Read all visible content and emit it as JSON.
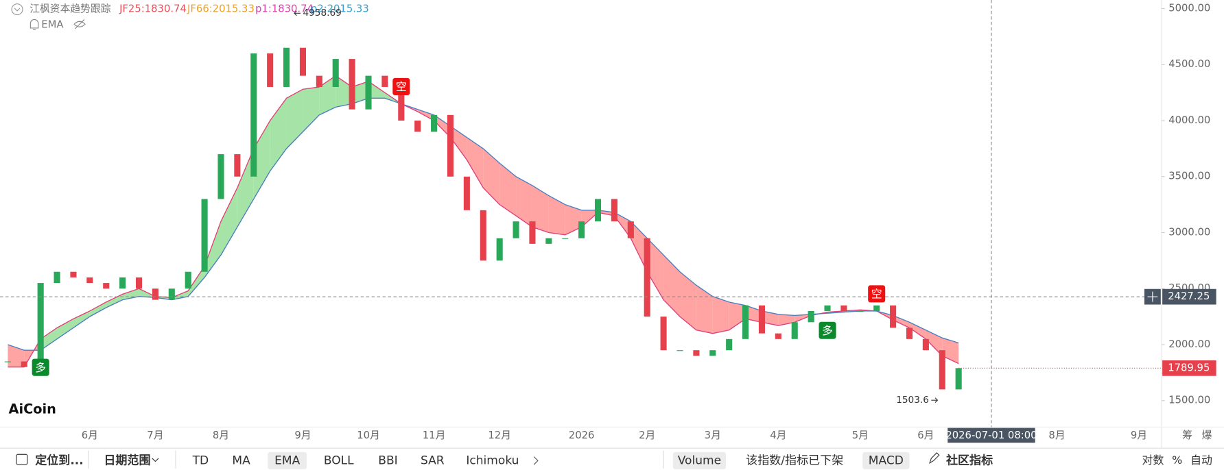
{
  "header": {
    "title": "江枫资本趋势跟踪",
    "plots": [
      {
        "name": "p1",
        "value": 1830.74
      },
      {
        "name": "p2",
        "value": 2015.33
      }
    ],
    "overlay": "EMA"
  },
  "logo": "AiCoin",
  "axis_extras": [
    "筹",
    "爆"
  ],
  "toolbar": {
    "locate": "定位到...",
    "date_range": "日期范围",
    "main_indicators": [
      {
        "label": "TD"
      },
      {
        "label": "MA"
      },
      {
        "label": "EMA",
        "active": true
      },
      {
        "label": "BOLL"
      },
      {
        "label": "BBI"
      },
      {
        "label": "SAR"
      },
      {
        "label": "Ichimoku"
      }
    ],
    "sub_indicators": [
      {
        "label": "Volume",
        "active": true
      },
      {
        "label": "该指数/指标已下架"
      },
      {
        "label": "MACD",
        "active": true
      }
    ],
    "community": "社区指标",
    "scale_options": [
      "对数",
      "%",
      "自动"
    ]
  },
  "chart_data": {
    "type": "candlestick",
    "categories": [
      null,
      null,
      null,
      null,
      null,
      "6月",
      null,
      null,
      null,
      "7月",
      null,
      null,
      null,
      "8月",
      null,
      null,
      null,
      null,
      "9月",
      null,
      null,
      null,
      "10月",
      null,
      null,
      null,
      "11月",
      null,
      null,
      null,
      "12月",
      null,
      null,
      null,
      null,
      "2026",
      null,
      null,
      null,
      "2月",
      null,
      null,
      null,
      "3月",
      null,
      null,
      null,
      "4月",
      null,
      null,
      null,
      null,
      "5月",
      null,
      null,
      null,
      "6月",
      null,
      null,
      null,
      "2026-07-01 08:00",
      null,
      null,
      null,
      "8月",
      null,
      null,
      null,
      null,
      "9月"
    ],
    "values": [
      1850,
      1800,
      2550,
      2650,
      2600,
      2550,
      2500,
      2600,
      2500,
      2400,
      2500,
      2650,
      3300,
      3700,
      3500,
      4600,
      4300,
      4650,
      4400,
      4300,
      4550,
      4100,
      4400,
      4300,
      4000,
      3900,
      4050,
      3500,
      3200,
      2750,
      2950,
      3100,
      2900,
      2950,
      2950,
      3100,
      3300,
      3100,
      2950,
      2250,
      1950,
      1950,
      1900,
      1950,
      2050,
      2350,
      2100,
      2050,
      2200,
      2300,
      2350,
      2300,
      2300,
      2350,
      2150,
      2050,
      1950,
      1600,
      1789.95,
      null,
      null,
      null,
      null,
      null,
      null,
      null,
      null,
      null,
      null,
      null
    ],
    "up_color": "#2aa85a",
    "down_color": "#e5404c",
    "series": [
      {
        "name": "JF25",
        "color": "#e0407a",
        "values": [
          1800,
          1800,
          2050,
          2150,
          2230,
          2300,
          2380,
          2450,
          2500,
          2430,
          2420,
          2480,
          2700,
          3100,
          3400,
          3750,
          4000,
          4200,
          4280,
          4300,
          4400,
          4300,
          4350,
          4250,
          4150,
          4080,
          4000,
          3850,
          3650,
          3400,
          3250,
          3150,
          3050,
          3000,
          2980,
          3050,
          3180,
          3150,
          2950,
          2650,
          2400,
          2250,
          2130,
          2100,
          2130,
          2230,
          2200,
          2170,
          2200,
          2260,
          2290,
          2300,
          2310,
          2300,
          2220,
          2150,
          2050,
          1900,
          1830.74,
          null,
          null,
          null,
          null,
          null,
          null,
          null,
          null,
          null,
          null,
          null
        ]
      },
      {
        "name": "JF66",
        "color": "#4a7fc0",
        "values": [
          2000,
          1950,
          1950,
          2050,
          2150,
          2250,
          2330,
          2400,
          2430,
          2420,
          2400,
          2430,
          2600,
          2800,
          3050,
          3300,
          3550,
          3750,
          3900,
          4050,
          4120,
          4150,
          4200,
          4200,
          4150,
          4100,
          4050,
          3950,
          3850,
          3750,
          3620,
          3500,
          3420,
          3330,
          3250,
          3200,
          3200,
          3180,
          3100,
          2950,
          2800,
          2650,
          2530,
          2430,
          2380,
          2350,
          2300,
          2270,
          2260,
          2270,
          2280,
          2290,
          2300,
          2300,
          2260,
          2200,
          2130,
          2060,
          2015.33,
          null,
          null,
          null,
          null,
          null,
          null,
          null,
          null,
          null,
          null,
          null
        ]
      }
    ],
    "band_colors": {
      "above": "#a6e3a6",
      "below": "#ffa3a3"
    },
    "signals": [
      {
        "label": "多",
        "category": 2,
        "color": "#0b8a2c"
      },
      {
        "label": "空",
        "category": 24,
        "color": "#ee1111"
      },
      {
        "label": "多",
        "category": 50,
        "color": "#0b8a2c"
      },
      {
        "label": "空",
        "category": 53,
        "color": "#ee1111"
      }
    ],
    "annotations": [
      {
        "value": 4958.69
      },
      {
        "value": 1503.6
      }
    ],
    "crosshair": {
      "category": 60,
      "value": 2427.25
    },
    "ylim": [
      1263.4,
      5076.5
    ],
    "yticks": [
      {
        "value": 1500,
        "label": "1500.00"
      },
      {
        "value": 2000,
        "label": "2000.00"
      },
      {
        "value": 2500,
        "label": "2500.00"
      },
      {
        "value": 3000,
        "label": "3000.00"
      },
      {
        "value": 3500,
        "label": "3500.00"
      },
      {
        "value": 4000,
        "label": "4000.00"
      },
      {
        "value": 4500,
        "label": "4500.00"
      },
      {
        "value": 5000,
        "label": "5000.00"
      }
    ]
  }
}
